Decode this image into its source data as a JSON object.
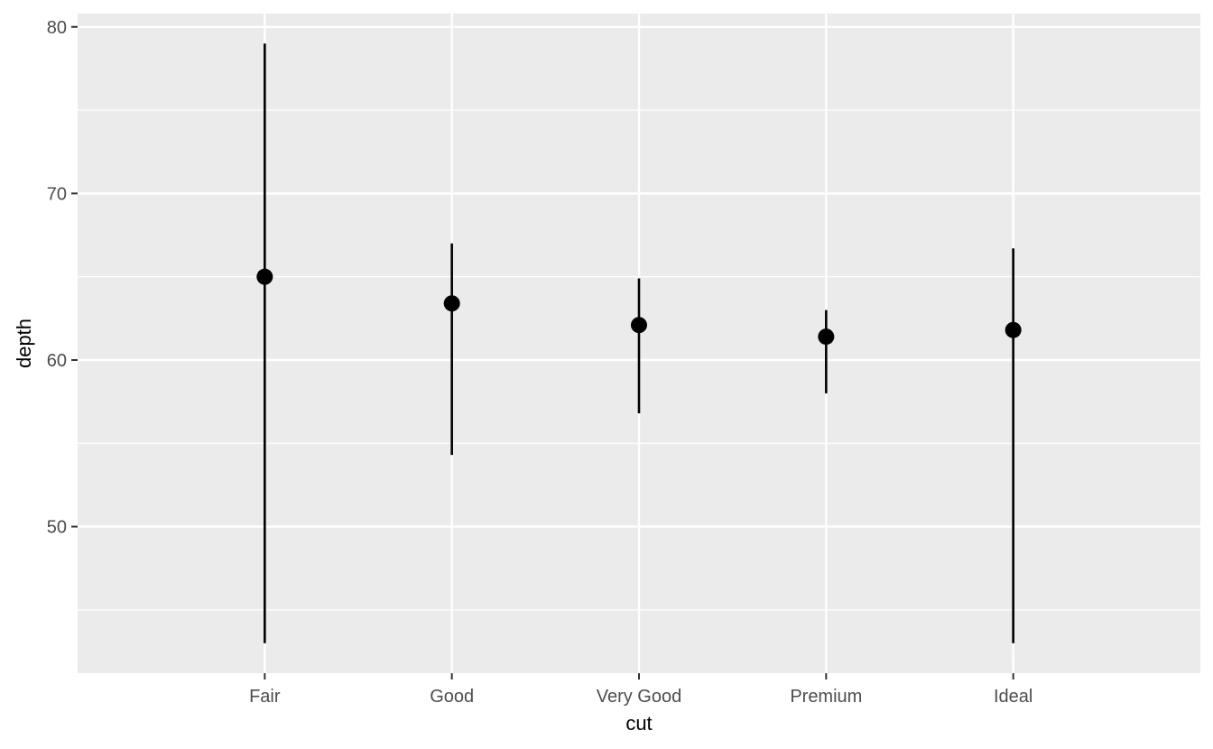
{
  "chart_data": {
    "type": "pointrange",
    "xlabel": "cut",
    "ylabel": "depth",
    "categories": [
      "Fair",
      "Good",
      "Very Good",
      "Premium",
      "Ideal"
    ],
    "y": [
      65.0,
      63.4,
      62.1,
      61.4,
      61.8
    ],
    "ymin": [
      43.0,
      54.3,
      56.8,
      58.0,
      43.0
    ],
    "ymax": [
      79.0,
      67.0,
      64.9,
      63.0,
      66.7
    ],
    "ylim": [
      41.2,
      80.8
    ],
    "yticks": [
      50,
      60,
      70,
      80
    ],
    "yminor": [
      45,
      55,
      65,
      75
    ],
    "grid": true,
    "colors": {
      "panel": "#EBEBEB",
      "grid": "#FFFFFF",
      "mark": "#000000",
      "tick": "#333333"
    }
  }
}
